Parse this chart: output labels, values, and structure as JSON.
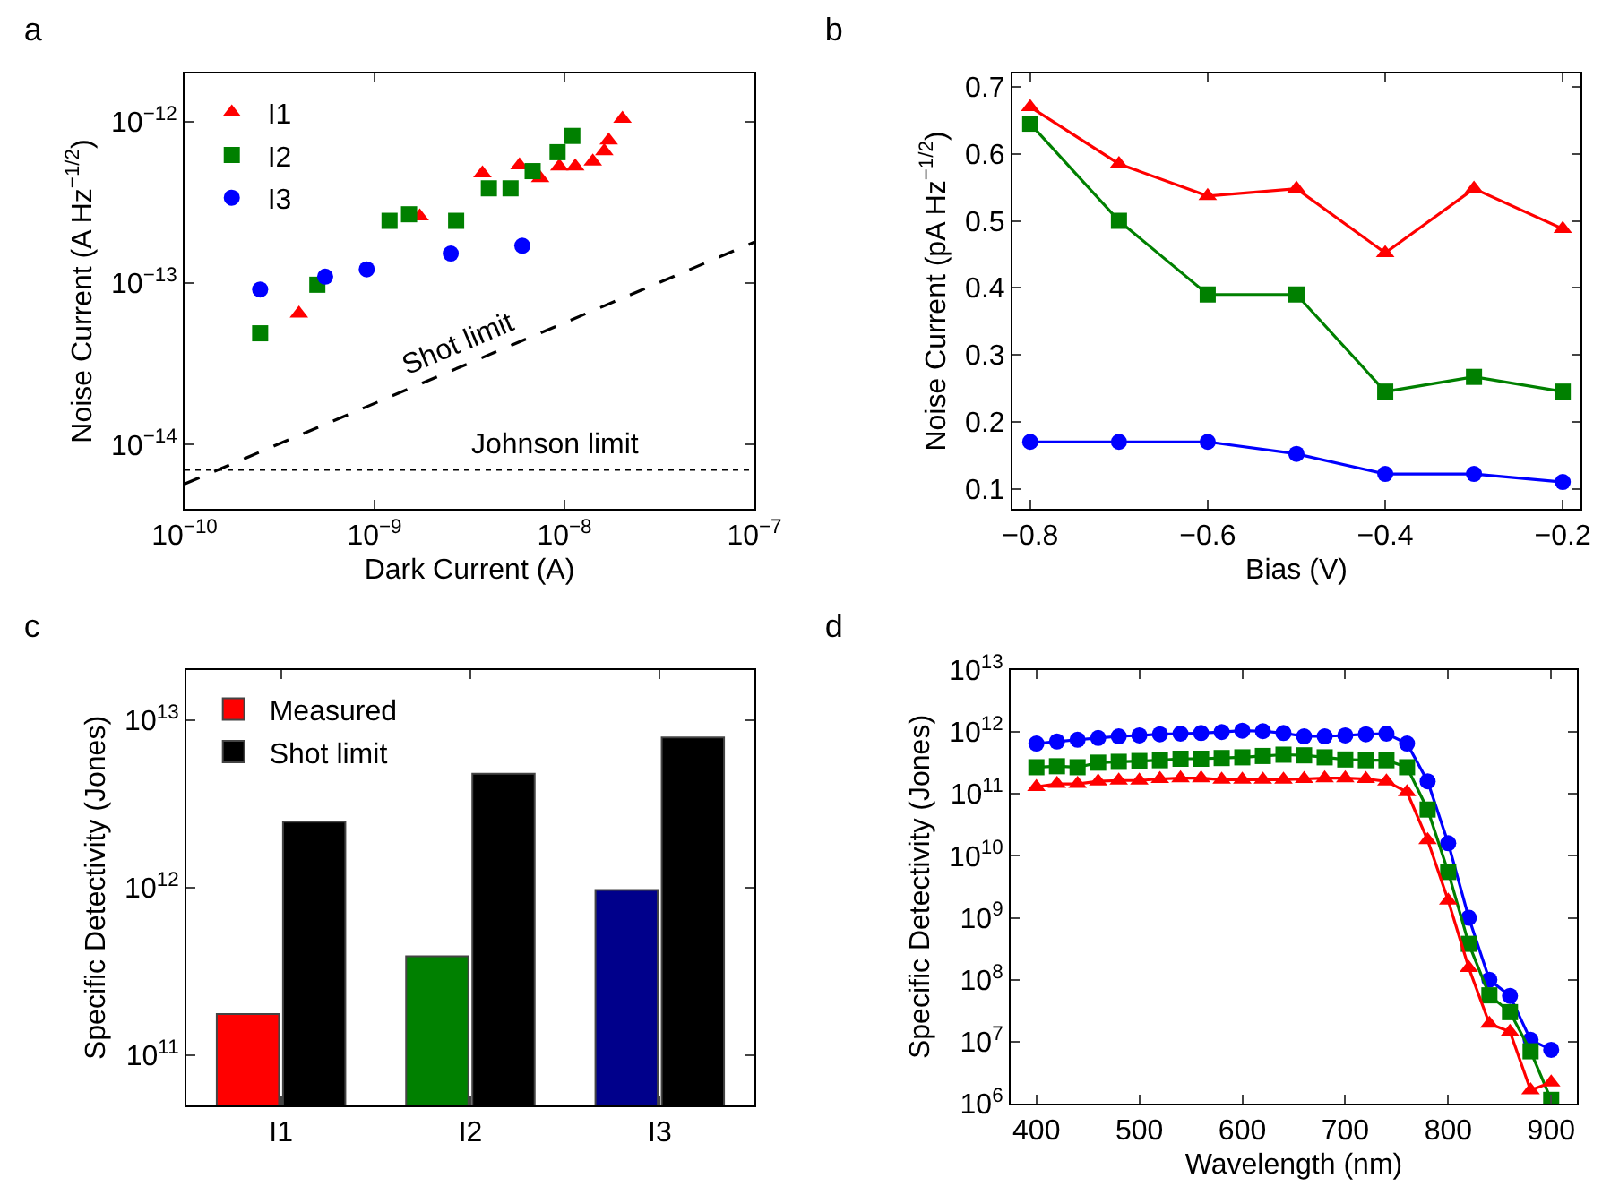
{
  "chart_data": [
    {
      "type": "scatter",
      "title": "a",
      "xlabel": "Dark Current (A)",
      "ylabel": "Noise Current (A Hz$^{−1/2}$)",
      "log": "xy",
      "grid": false,
      "legend": "top left",
      "xlim": [
        1e-10,
        1e-07
      ],
      "xticks": [
        {
          "value": 1e-10,
          "label": "10$^{−10}$"
        },
        {
          "value": 1e-09,
          "label": "10$^{−9}$"
        },
        {
          "value": 1e-08,
          "label": "10$^{−8}$"
        },
        {
          "value": 1e-07,
          "label": "10$^{−7}$"
        }
      ],
      "ylim": [
        4e-15,
        2e-12
      ],
      "yticks": [
        {
          "value": 1e-14,
          "label": "10$^{−14}$"
        },
        {
          "value": 1e-13,
          "label": "10$^{−13}$"
        },
        {
          "value": 1e-12,
          "label": "10$^{−12}$"
        }
      ],
      "series": [
        {
          "name": "I1",
          "color": "#ff0000",
          "marker": "triangle",
          "x": [
            4e-10,
            1.73e-09,
            3.7e-09,
            5.8e-09,
            7.45e-09,
            9.4e-09,
            1.14e-08,
            1.41e-08,
            1.62e-08,
            1.71e-08,
            2.02e-08
          ],
          "values": [
            6.5e-14,
            2.6e-13,
            4.8e-13,
            5.4e-13,
            4.5e-13,
            5.3e-13,
            5.3e-13,
            5.7e-13,
            6.6e-13,
            7.7e-13,
            1.05e-12
          ]
        },
        {
          "name": "I2",
          "color": "#008000",
          "marker": "square",
          "x": [
            2.5e-10,
            5e-10,
            1.2e-09,
            1.52e-09,
            2.69e-09,
            4e-09,
            5.2e-09,
            6.8e-09,
            9.2e-09,
            1.1e-08
          ],
          "values": [
            4.9e-14,
            9.8e-14,
            2.44e-13,
            2.68e-13,
            2.44e-13,
            3.88e-13,
            3.88e-13,
            4.96e-13,
            6.5e-13,
            8.2e-13
          ]
        },
        {
          "name": "I3",
          "color": "#0000ff",
          "marker": "circle",
          "x": [
            2.5e-10,
            5.5e-10,
            9.1e-10,
            2.52e-09,
            6e-09
          ],
          "values": [
            9.15e-14,
            1.1e-13,
            1.22e-13,
            1.53e-13,
            1.71e-13
          ]
        },
        {
          "type": "line",
          "color": "#000000",
          "marker": "none",
          "line_style": "dashed",
          "x": [
            1e-10,
            1e-07
          ],
          "values": [
            5.7e-15,
            1.8e-13
          ]
        }
      ],
      "ref_lines": [
        {
          "axis": "y",
          "value": 7e-15,
          "label": "Johnson limit",
          "color": "#000000",
          "line_style": "dotted"
        }
      ],
      "annotations": [
        "Shot limit"
      ]
    },
    {
      "type": "line",
      "title": "b",
      "xlabel": "Bias (V)",
      "ylabel": "Noise Current (pA Hz$^{−1/2}$)",
      "grid": false,
      "legend": false,
      "line_style": "solid",
      "xlim": [
        -0.82,
        -0.18
      ],
      "xticks": [
        {
          "value": -0.8,
          "label": "−0.8"
        },
        {
          "value": -0.6,
          "label": "−0.6"
        },
        {
          "value": -0.4,
          "label": "−0.4"
        },
        {
          "value": -0.2,
          "label": "−0.2"
        }
      ],
      "ylim": [
        0.07,
        0.72
      ],
      "yticks": [
        0.1,
        0.2,
        0.3,
        0.4,
        0.5,
        0.6,
        0.7
      ],
      "x": [
        -0.8,
        -0.7,
        -0.6,
        -0.5,
        -0.4,
        -0.3,
        -0.2
      ],
      "series": [
        {
          "color": "#ff0000",
          "marker": "triangle",
          "values": [
            0.67,
            0.585,
            0.537,
            0.548,
            0.452,
            0.548,
            0.488
          ]
        },
        {
          "color": "#008000",
          "marker": "square",
          "values": [
            0.645,
            0.5,
            0.39,
            0.39,
            0.245,
            0.267,
            0.245
          ]
        },
        {
          "color": "#0000ff",
          "marker": "circle",
          "values": [
            0.17,
            0.17,
            0.17,
            0.152,
            0.122,
            0.122,
            0.11
          ]
        }
      ]
    },
    {
      "type": "bar",
      "title": "c",
      "ylabel": "Specific Detectivity (Jones)",
      "log": "y",
      "grid": false,
      "legend": "top left",
      "categories": [
        "I1",
        "I2",
        "I3"
      ],
      "ylim": [
        50000000000.0,
        20000000000000.0
      ],
      "yticks": [
        {
          "value": 100000000000.0,
          "label": "10$^{11}$"
        },
        {
          "value": 1000000000000.0,
          "label": "10$^{12}$"
        },
        {
          "value": 10000000000000.0,
          "label": "10$^{13}$"
        }
      ],
      "series": [
        {
          "name": "Measured",
          "colors": [
            "#ff0000",
            "#008000",
            "#00008b"
          ],
          "values": [
            176000000000.0,
            390000000000.0,
            970000000000.0
          ]
        },
        {
          "name": "Shot limit",
          "color": "#000000",
          "values": [
            2480000000000.0,
            4800000000000.0,
            7900000000000.0
          ]
        }
      ]
    },
    {
      "type": "line",
      "title": "d",
      "xlabel": "Wavelength (nm)",
      "ylabel": "Specific Detectivity (Jones)",
      "log": "y",
      "grid": false,
      "legend": false,
      "line_style": "solid",
      "xlim": [
        375,
        925
      ],
      "xticks": [
        400,
        500,
        600,
        700,
        800,
        900
      ],
      "ylim": [
        1000000.0,
        10000000000000.0
      ],
      "yticks": [
        {
          "value": 1000000.0,
          "label": "10$^{6}$"
        },
        {
          "value": 10000000.0,
          "label": "10$^{7}$"
        },
        {
          "value": 100000000.0,
          "label": "10$^{8}$"
        },
        {
          "value": 1000000000.0,
          "label": "10$^{9}$"
        },
        {
          "value": 10000000000.0,
          "label": "10$^{10}$"
        },
        {
          "value": 100000000000.0,
          "label": "10$^{11}$"
        },
        {
          "value": 1000000000000.0,
          "label": "10$^{12}$"
        },
        {
          "value": 10000000000000.0,
          "label": "10$^{13}$"
        }
      ],
      "x": [
        400,
        420,
        440,
        460,
        480,
        500,
        520,
        540,
        560,
        580,
        600,
        620,
        640,
        660,
        680,
        700,
        720,
        740,
        760,
        780,
        800,
        820,
        840,
        860,
        880,
        900
      ],
      "series": [
        {
          "color": "#0000ff",
          "marker": "circle",
          "values": [
            650000000000.0,
            700000000000.0,
            750000000000.0,
            800000000000.0,
            850000000000.0,
            880000000000.0,
            920000000000.0,
            940000000000.0,
            960000000000.0,
            1000000000000.0,
            1050000000000.0,
            1030000000000.0,
            960000000000.0,
            850000000000.0,
            850000000000.0,
            880000000000.0,
            920000000000.0,
            940000000000.0,
            650000000000.0,
            160000000000.0,
            16000000000.0,
            1000000000.0,
            100000000.0,
            55000000.0,
            10700000.0,
            7400000.0
          ]
        },
        {
          "color": "#008000",
          "marker": "square",
          "values": [
            270000000000.0,
            280000000000.0,
            270000000000.0,
            320000000000.0,
            330000000000.0,
            340000000000.0,
            350000000000.0,
            370000000000.0,
            370000000000.0,
            380000000000.0,
            390000000000.0,
            410000000000.0,
            430000000000.0,
            420000000000.0,
            390000000000.0,
            360000000000.0,
            350000000000.0,
            350000000000.0,
            270000000000.0,
            56000000000.0,
            5500000000.0,
            380000000.0,
            56000000.0,
            30000000.0,
            7000000.0,
            1150000.0
          ]
        },
        {
          "color": "#ff0000",
          "marker": "triangle",
          "values": [
            130000000000.0,
            145000000000.0,
            145000000000.0,
            160000000000.0,
            165000000000.0,
            165000000000.0,
            175000000000.0,
            180000000000.0,
            180000000000.0,
            170000000000.0,
            170000000000.0,
            170000000000.0,
            170000000000.0,
            175000000000.0,
            180000000000.0,
            180000000000.0,
            175000000000.0,
            160000000000.0,
            107000000000.0,
            18000000000.0,
            1900000000.0,
            155000000.0,
            19500000.0,
            14500000.0,
            1650000.0,
            2200000.0
          ]
        }
      ]
    }
  ]
}
